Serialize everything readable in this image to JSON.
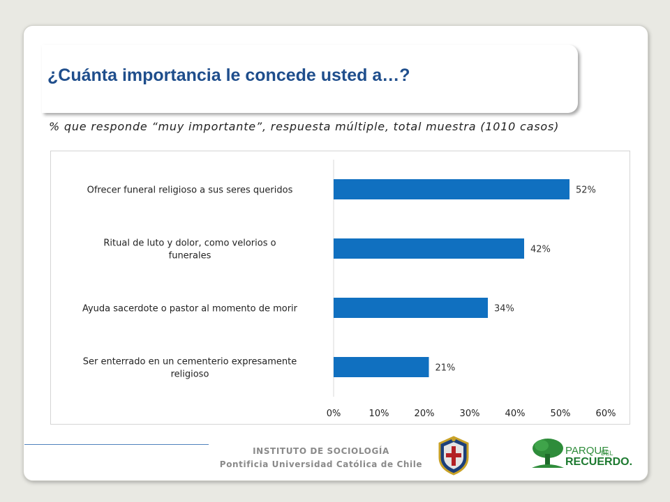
{
  "header": {
    "title": "¿Cuánta importancia le concede usted a…?",
    "subtitle": "% que responde “muy importante”, respuesta múltiple, total muestra (1010 casos)"
  },
  "chart_data": {
    "type": "bar",
    "orientation": "horizontal",
    "categories": [
      "Ofrecer funeral religioso a sus seres queridos",
      "Ritual de luto y dolor, como velorios o funerales",
      "Ayuda sacerdote o pastor al momento de morir",
      "Ser enterrado en un cementerio expresamente religioso"
    ],
    "values": [
      52,
      42,
      34,
      21
    ],
    "value_labels": [
      "52%",
      "42%",
      "34%",
      "21%"
    ],
    "xlim": [
      0,
      60
    ],
    "x_ticks": [
      "0%",
      "10%",
      "20%",
      "30%",
      "40%",
      "50%",
      "60%"
    ],
    "bar_color": "#1070c0",
    "grid": false,
    "legend": "none"
  },
  "footer": {
    "institute": "INSTITUTO DE SOCIOLOGÍA",
    "university": "Pontificia Universidad Católica de Chile",
    "logo_word_1": "PARQUE",
    "logo_word_2": "DEL",
    "logo_word_3": "RECUERDO."
  }
}
